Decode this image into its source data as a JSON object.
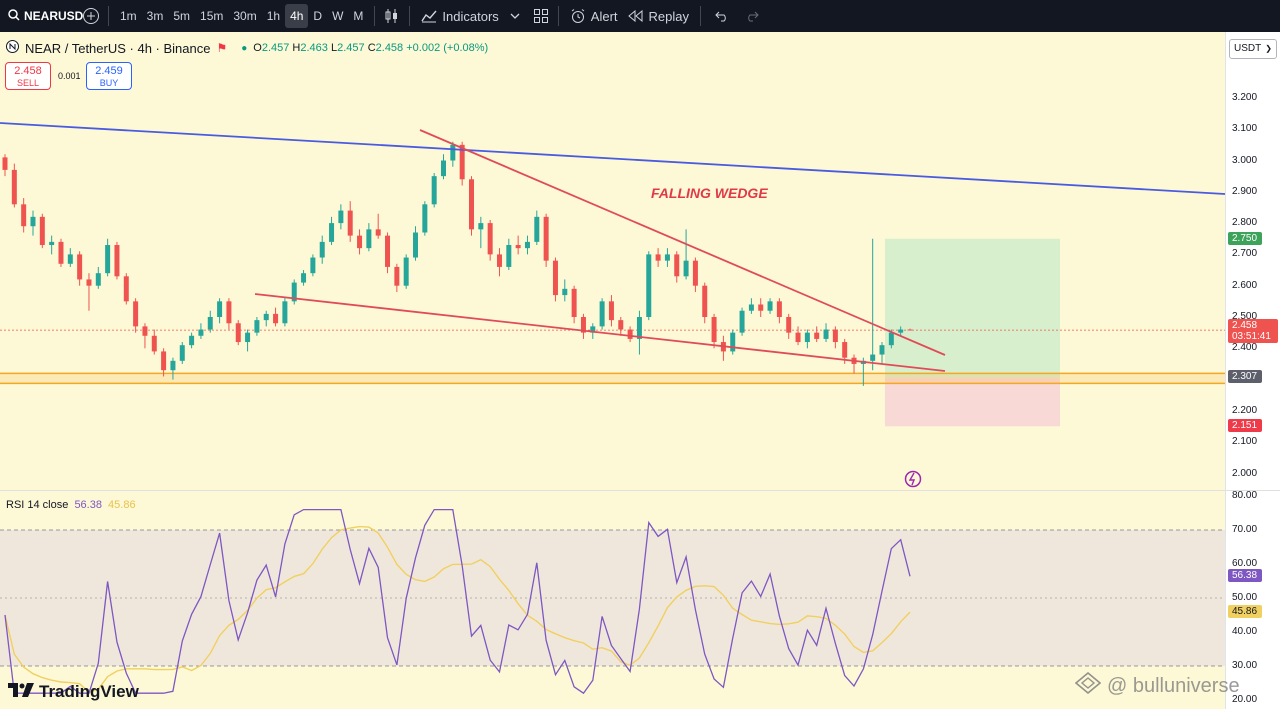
{
  "toolbar": {
    "symbol": "NEARUSD",
    "timeframes": [
      "1m",
      "3m",
      "5m",
      "15m",
      "30m",
      "1h",
      "4h",
      "D",
      "W",
      "M"
    ],
    "active_timeframe": "4h",
    "indicators_label": "Indicators",
    "alert_label": "Alert",
    "replay_label": "Replay"
  },
  "legend": {
    "title": "NEAR / TetherUS · 4h · Binance",
    "open": "2.457",
    "high": "2.463",
    "low": "2.457",
    "close": "2.458",
    "change": "+0.002 (+0.08%)"
  },
  "trade": {
    "sell_price": "2.458",
    "sell_label": "SELL",
    "spread": "0.001",
    "buy_price": "2.459",
    "buy_label": "BUY"
  },
  "currency_select": "USDT",
  "annotation": "FALLING WEDGE",
  "price_axis": {
    "ticks": [
      "3.200",
      "3.100",
      "3.000",
      "2.900",
      "2.800",
      "2.700",
      "2.600",
      "2.500",
      "2.400",
      "2.300",
      "2.200",
      "2.100",
      "2.000"
    ],
    "badges": {
      "target": "2.750",
      "current": "2.458",
      "countdown": "03:51:41",
      "support": "2.307",
      "stop": "2.151"
    }
  },
  "rsi": {
    "title": "RSI 14 close",
    "rsi_value": "56.38",
    "ma_value": "45.86",
    "ticks": [
      "80.00",
      "70.00",
      "60.00",
      "50.00",
      "40.00",
      "30.00",
      "20.00"
    ]
  },
  "brand": "TradingView",
  "watermark": "@ bulluniverse",
  "colors": {
    "up": "#26a69a",
    "down": "#ef5350",
    "wedge": "#e04b5a",
    "trendline": "#4a5be0",
    "support_band": "#f5a623",
    "target_zone": "#d4edcc",
    "stop_zone": "#f8d5d5",
    "rsi_line": "#7e57c2",
    "rsi_ma": "#f0d060"
  },
  "chart_data": {
    "type": "candlestick",
    "price_range": [
      1.95,
      3.3
    ],
    "candles": [
      [
        3.01,
        3.02,
        2.95,
        2.97
      ],
      [
        2.97,
        2.99,
        2.85,
        2.86
      ],
      [
        2.86,
        2.88,
        2.77,
        2.79
      ],
      [
        2.79,
        2.84,
        2.76,
        2.82
      ],
      [
        2.82,
        2.83,
        2.72,
        2.73
      ],
      [
        2.73,
        2.76,
        2.7,
        2.74
      ],
      [
        2.74,
        2.75,
        2.66,
        2.67
      ],
      [
        2.67,
        2.72,
        2.66,
        2.7
      ],
      [
        2.7,
        2.71,
        2.6,
        2.62
      ],
      [
        2.62,
        2.64,
        2.52,
        2.6
      ],
      [
        2.6,
        2.66,
        2.59,
        2.64
      ],
      [
        2.64,
        2.75,
        2.63,
        2.73
      ],
      [
        2.73,
        2.74,
        2.62,
        2.63
      ],
      [
        2.63,
        2.64,
        2.54,
        2.55
      ],
      [
        2.55,
        2.56,
        2.45,
        2.47
      ],
      [
        2.47,
        2.48,
        2.4,
        2.44
      ],
      [
        2.44,
        2.46,
        2.38,
        2.39
      ],
      [
        2.39,
        2.4,
        2.31,
        2.33
      ],
      [
        2.33,
        2.37,
        2.3,
        2.36
      ],
      [
        2.36,
        2.42,
        2.35,
        2.41
      ],
      [
        2.41,
        2.45,
        2.4,
        2.44
      ],
      [
        2.44,
        2.48,
        2.43,
        2.46
      ],
      [
        2.46,
        2.52,
        2.45,
        2.5
      ],
      [
        2.5,
        2.56,
        2.48,
        2.55
      ],
      [
        2.55,
        2.56,
        2.46,
        2.48
      ],
      [
        2.48,
        2.49,
        2.41,
        2.42
      ],
      [
        2.42,
        2.46,
        2.39,
        2.45
      ],
      [
        2.45,
        2.5,
        2.44,
        2.49
      ],
      [
        2.49,
        2.52,
        2.47,
        2.51
      ],
      [
        2.51,
        2.53,
        2.47,
        2.48
      ],
      [
        2.48,
        2.56,
        2.47,
        2.55
      ],
      [
        2.55,
        2.62,
        2.54,
        2.61
      ],
      [
        2.61,
        2.65,
        2.6,
        2.64
      ],
      [
        2.64,
        2.7,
        2.63,
        2.69
      ],
      [
        2.69,
        2.76,
        2.67,
        2.74
      ],
      [
        2.74,
        2.82,
        2.73,
        2.8
      ],
      [
        2.8,
        2.86,
        2.78,
        2.84
      ],
      [
        2.84,
        2.87,
        2.74,
        2.76
      ],
      [
        2.76,
        2.78,
        2.7,
        2.72
      ],
      [
        2.72,
        2.8,
        2.71,
        2.78
      ],
      [
        2.78,
        2.83,
        2.75,
        2.76
      ],
      [
        2.76,
        2.77,
        2.64,
        2.66
      ],
      [
        2.66,
        2.67,
        2.58,
        2.6
      ],
      [
        2.6,
        2.7,
        2.59,
        2.69
      ],
      [
        2.69,
        2.79,
        2.68,
        2.77
      ],
      [
        2.77,
        2.87,
        2.76,
        2.86
      ],
      [
        2.86,
        2.96,
        2.85,
        2.95
      ],
      [
        2.95,
        3.02,
        2.94,
        3.0
      ],
      [
        3.0,
        3.06,
        2.98,
        3.05
      ],
      [
        3.05,
        3.06,
        2.92,
        2.94
      ],
      [
        2.94,
        2.95,
        2.76,
        2.78
      ],
      [
        2.78,
        2.82,
        2.72,
        2.8
      ],
      [
        2.8,
        2.81,
        2.68,
        2.7
      ],
      [
        2.7,
        2.72,
        2.63,
        2.66
      ],
      [
        2.66,
        2.75,
        2.65,
        2.73
      ],
      [
        2.73,
        2.76,
        2.7,
        2.72
      ],
      [
        2.72,
        2.76,
        2.7,
        2.74
      ],
      [
        2.74,
        2.84,
        2.73,
        2.82
      ],
      [
        2.82,
        2.83,
        2.66,
        2.68
      ],
      [
        2.68,
        2.69,
        2.55,
        2.57
      ],
      [
        2.57,
        2.62,
        2.55,
        2.59
      ],
      [
        2.59,
        2.6,
        2.48,
        2.5
      ],
      [
        2.5,
        2.51,
        2.43,
        2.45
      ],
      [
        2.45,
        2.48,
        2.43,
        2.47
      ],
      [
        2.47,
        2.56,
        2.46,
        2.55
      ],
      [
        2.55,
        2.57,
        2.47,
        2.49
      ],
      [
        2.49,
        2.5,
        2.44,
        2.46
      ],
      [
        2.46,
        2.47,
        2.42,
        2.43
      ],
      [
        2.43,
        2.52,
        2.38,
        2.5
      ],
      [
        2.5,
        2.71,
        2.49,
        2.7
      ],
      [
        2.7,
        2.72,
        2.66,
        2.68
      ],
      [
        2.68,
        2.72,
        2.66,
        2.7
      ],
      [
        2.7,
        2.71,
        2.61,
        2.63
      ],
      [
        2.63,
        2.78,
        2.62,
        2.68
      ],
      [
        2.68,
        2.69,
        2.58,
        2.6
      ],
      [
        2.6,
        2.61,
        2.48,
        2.5
      ],
      [
        2.5,
        2.51,
        2.4,
        2.42
      ],
      [
        2.42,
        2.44,
        2.36,
        2.39
      ],
      [
        2.39,
        2.46,
        2.38,
        2.45
      ],
      [
        2.45,
        2.53,
        2.44,
        2.52
      ],
      [
        2.52,
        2.56,
        2.51,
        2.54
      ],
      [
        2.54,
        2.56,
        2.5,
        2.52
      ],
      [
        2.52,
        2.56,
        2.51,
        2.55
      ],
      [
        2.55,
        2.56,
        2.48,
        2.5
      ],
      [
        2.5,
        2.51,
        2.43,
        2.45
      ],
      [
        2.45,
        2.47,
        2.41,
        2.42
      ],
      [
        2.42,
        2.46,
        2.4,
        2.45
      ],
      [
        2.45,
        2.47,
        2.42,
        2.43
      ],
      [
        2.43,
        2.48,
        2.42,
        2.46
      ],
      [
        2.46,
        2.47,
        2.4,
        2.42
      ],
      [
        2.42,
        2.43,
        2.35,
        2.37
      ],
      [
        2.37,
        2.38,
        2.32,
        2.35
      ],
      [
        2.35,
        2.37,
        2.28,
        2.36
      ],
      [
        2.36,
        2.75,
        2.33,
        2.38
      ],
      [
        2.38,
        2.42,
        2.35,
        2.41
      ],
      [
        2.41,
        2.46,
        2.4,
        2.45
      ],
      [
        2.45,
        2.47,
        2.44,
        2.46
      ],
      [
        2.46,
        2.463,
        2.457,
        2.458
      ]
    ],
    "target_price": 2.75,
    "stop_price": 2.151,
    "support_level": 2.307,
    "rsi_range": [
      20,
      80
    ]
  }
}
